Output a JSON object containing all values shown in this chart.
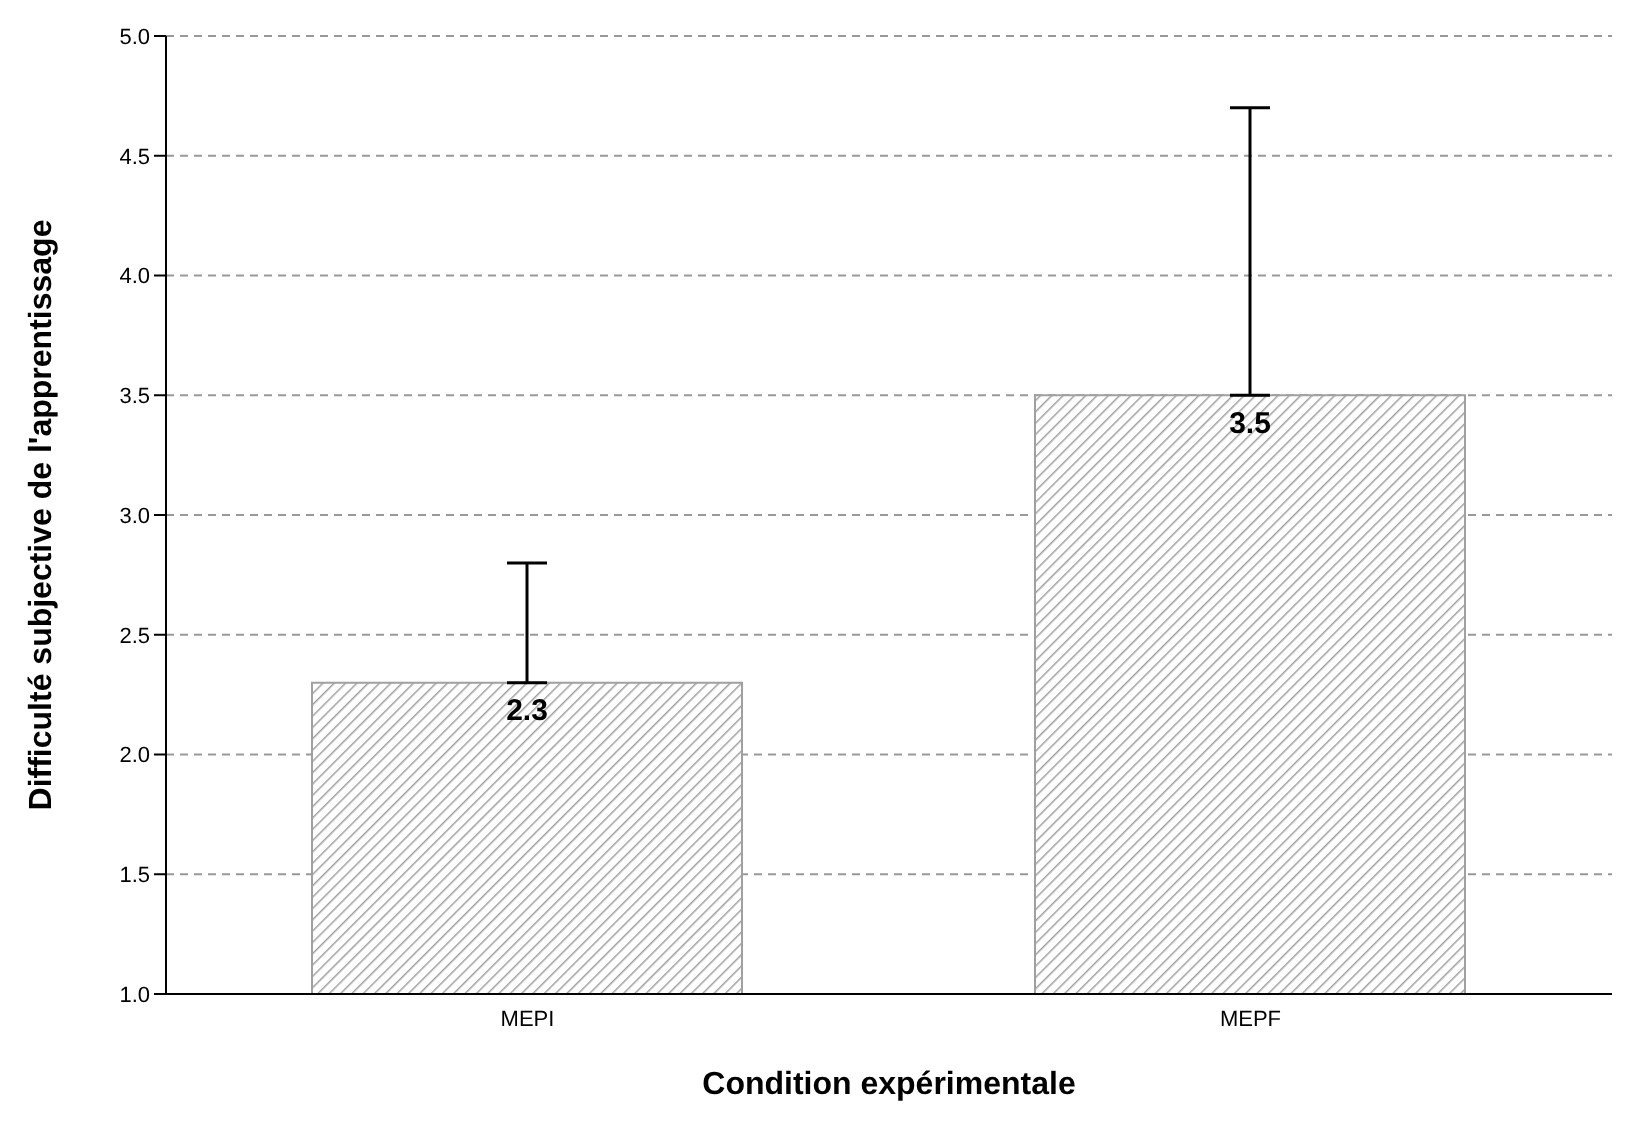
{
  "chart_data": {
    "type": "bar",
    "xlabel": "Condition expérimentale",
    "ylabel": "Difficulté subjective de l'apprentissage",
    "categories": [
      "MEPI",
      "MEPF"
    ],
    "values": [
      2.3,
      3.5
    ],
    "errors": [
      [
        2.3,
        2.8
      ],
      [
        3.5,
        4.7
      ]
    ],
    "color": "#a0a0a0",
    "ylim": [
      1,
      5
    ],
    "yticks": [
      {
        "value": 1,
        "label": "1.0"
      },
      {
        "value": 1.5,
        "label": "1.5"
      },
      {
        "value": 2,
        "label": "2.0"
      },
      {
        "value": 2.5,
        "label": "2.5"
      },
      {
        "value": 3,
        "label": "3.0"
      },
      {
        "value": 3.5,
        "label": "3.5"
      },
      {
        "value": 4,
        "label": "4.0"
      },
      {
        "value": 4.5,
        "label": "4.5"
      },
      {
        "value": 5,
        "label": "5.0"
      }
    ],
    "grid": "y",
    "data_labels": true,
    "legend": false
  }
}
